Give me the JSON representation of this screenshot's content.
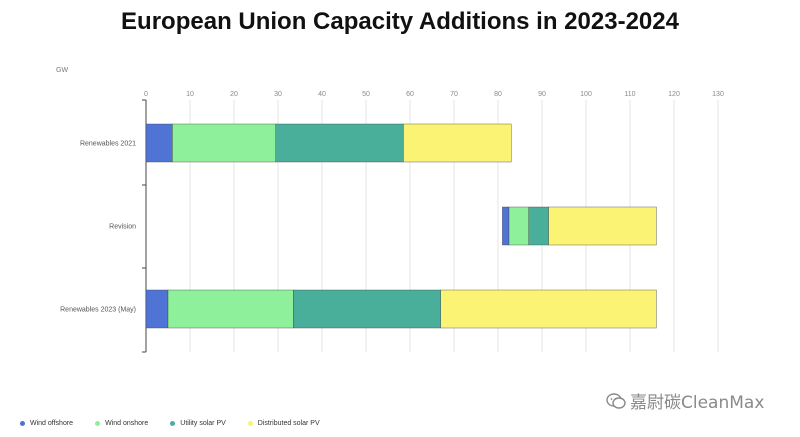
{
  "title": "European Union Capacity Additions in 2023-2024",
  "watermark": "嘉尉碳CleanMax",
  "chart_data": {
    "type": "bar",
    "orientation": "horizontal",
    "stacked": true,
    "title": "European Union Capacity Additions in 2023-2024",
    "unit_label": "GW",
    "xlim": [
      0,
      130
    ],
    "xticks": [
      0,
      10,
      20,
      30,
      40,
      50,
      60,
      70,
      80,
      90,
      100,
      110,
      120,
      130
    ],
    "grid": true,
    "legend_position": "bottom-left",
    "categories": [
      "Renewables 2021",
      "Revision",
      "Renewables 2023 (May)"
    ],
    "series": [
      {
        "name": "Wind offshore",
        "color": "#4f74d6",
        "starts": [
          0,
          81,
          0
        ],
        "values": [
          6,
          1.5,
          5
        ]
      },
      {
        "name": "Wind onshore",
        "color": "#8ef09a",
        "starts": [
          6,
          82.5,
          5
        ],
        "values": [
          23.5,
          4.5,
          28.5
        ]
      },
      {
        "name": "Utility solar PV",
        "color": "#4aaf9a",
        "starts": [
          29.5,
          87,
          33.5
        ],
        "values": [
          29,
          4.5,
          33.5
        ]
      },
      {
        "name": "Distributed solar PV",
        "color": "#fbf373",
        "starts": [
          58.5,
          91.5,
          67
        ],
        "values": [
          24.5,
          24.5,
          49
        ]
      }
    ]
  }
}
